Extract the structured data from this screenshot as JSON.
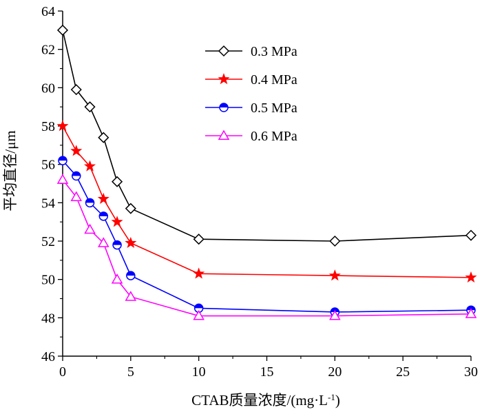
{
  "chart_data": {
    "type": "line",
    "title": "",
    "xlabel": "CTAB质量浓度/(mg·L",
    "xlabel_sup": "-1",
    "xlabel_end": ")",
    "ylabel": "平均直径/μm",
    "xlim": [
      0,
      30
    ],
    "ylim": [
      46,
      64
    ],
    "x_ticks": [
      0,
      5,
      10,
      15,
      20,
      25,
      30
    ],
    "y_ticks": [
      46,
      48,
      50,
      52,
      54,
      56,
      58,
      60,
      62,
      64
    ],
    "grid": false,
    "legend_position": "top-center",
    "x": [
      0,
      1,
      2,
      3,
      4,
      5,
      10,
      20,
      30
    ],
    "series": [
      {
        "name": "0.3 MPa",
        "color": "#000000",
        "marker": "diamond",
        "values": [
          63.0,
          59.9,
          59.0,
          57.4,
          55.1,
          53.7,
          52.1,
          52.0,
          52.3
        ]
      },
      {
        "name": "0.4 MPa",
        "color": "#ff0000",
        "marker": "star",
        "values": [
          58.0,
          56.7,
          55.9,
          54.2,
          53.0,
          51.9,
          50.3,
          50.2,
          50.1
        ]
      },
      {
        "name": "0.5 MPa",
        "color": "#0000ff",
        "marker": "circle",
        "values": [
          56.2,
          55.4,
          54.0,
          53.3,
          51.8,
          50.2,
          48.5,
          48.3,
          48.4
        ]
      },
      {
        "name": "0.6 MPa",
        "color": "#ff00ff",
        "marker": "triangle",
        "values": [
          55.2,
          54.3,
          52.6,
          51.9,
          50.0,
          49.1,
          48.1,
          48.1,
          48.2
        ]
      }
    ]
  }
}
